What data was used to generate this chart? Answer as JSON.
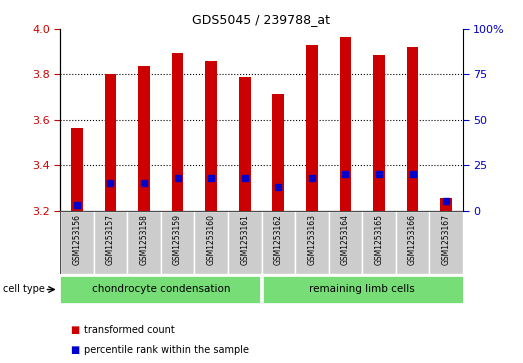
{
  "title": "GDS5045 / 239788_at",
  "samples": [
    "GSM1253156",
    "GSM1253157",
    "GSM1253158",
    "GSM1253159",
    "GSM1253160",
    "GSM1253161",
    "GSM1253162",
    "GSM1253163",
    "GSM1253164",
    "GSM1253165",
    "GSM1253166",
    "GSM1253167"
  ],
  "transformed_counts": [
    3.565,
    3.8,
    3.835,
    3.895,
    3.86,
    3.79,
    3.715,
    3.93,
    3.965,
    3.885,
    3.92,
    3.255
  ],
  "percentile_ranks": [
    3.0,
    15.0,
    15.0,
    18.0,
    18.0,
    18.0,
    13.0,
    18.0,
    20.0,
    20.0,
    20.0,
    5.0
  ],
  "y_min": 3.2,
  "y_max": 4.0,
  "y_ticks": [
    3.2,
    3.4,
    3.6,
    3.8,
    4.0
  ],
  "right_y_ticks": [
    0,
    25,
    50,
    75,
    100
  ],
  "right_y_tick_labels": [
    "0",
    "25",
    "50",
    "75",
    "100%"
  ],
  "bar_color": "#cc0000",
  "percentile_color": "#0000cc",
  "bar_width": 0.35,
  "group1_samples": 6,
  "group2_samples": 6,
  "group1_label": "chondrocyte condensation",
  "group2_label": "remaining limb cells",
  "group_color": "#77dd77",
  "cell_type_label": "cell type",
  "legend_items": [
    {
      "label": "transformed count",
      "color": "#cc0000"
    },
    {
      "label": "percentile rank within the sample",
      "color": "#0000cc"
    }
  ],
  "grid_color": "black",
  "tick_color_left": "#cc0000",
  "tick_color_right": "#0000cc",
  "sample_bg": "#cccccc"
}
